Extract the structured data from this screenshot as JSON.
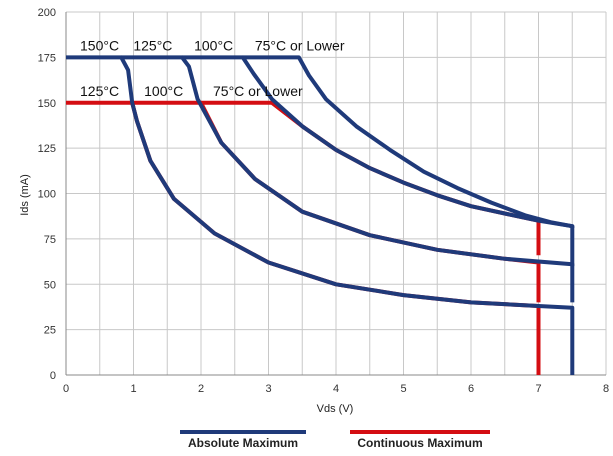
{
  "chart_data": {
    "type": "line",
    "xlabel": "Vds (V)",
    "ylabel": "Ids (mA)",
    "xlim": [
      0,
      8
    ],
    "ylim": [
      0,
      200
    ],
    "x_ticks": [
      "0",
      "1",
      "2",
      "3",
      "4",
      "5",
      "6",
      "7",
      "8"
    ],
    "y_ticks": [
      "0",
      "25",
      "50",
      "75",
      "100",
      "125",
      "150",
      "175",
      "200"
    ],
    "grid": true,
    "legend_placement": "bottom",
    "legend": [
      "Absolute Maximum",
      "Continuous Maximum"
    ],
    "colors": {
      "absolute": "#1f3a7a",
      "continuous": "#d40d12",
      "grid": "#c8c8c8",
      "axis": "#888888"
    },
    "series": [
      {
        "group": "absolute",
        "label": "150°C",
        "points": [
          [
            0,
            175
          ],
          [
            0.82,
            175
          ],
          [
            0.92,
            168
          ],
          [
            0.98,
            150
          ],
          [
            1.05,
            140
          ],
          [
            1.25,
            118
          ],
          [
            1.6,
            97
          ],
          [
            2.2,
            78
          ],
          [
            3.0,
            62
          ],
          [
            4.0,
            50
          ],
          [
            5.0,
            44
          ],
          [
            6.0,
            40
          ],
          [
            7.0,
            38
          ],
          [
            7.5,
            37
          ],
          [
            7.5,
            0
          ]
        ]
      },
      {
        "group": "absolute",
        "label": "125°C",
        "points": [
          [
            0.82,
            175
          ],
          [
            1.72,
            175
          ],
          [
            1.82,
            170
          ],
          [
            1.95,
            152
          ],
          [
            2.3,
            128
          ],
          [
            2.8,
            108
          ],
          [
            3.5,
            90
          ],
          [
            4.5,
            77
          ],
          [
            5.5,
            69
          ],
          [
            6.5,
            64
          ],
          [
            7.5,
            61
          ],
          [
            7.5,
            40
          ]
        ]
      },
      {
        "group": "absolute",
        "label": "100°C",
        "points": [
          [
            1.72,
            175
          ],
          [
            2.62,
            175
          ],
          [
            2.78,
            166
          ],
          [
            3.05,
            152
          ],
          [
            3.5,
            137
          ],
          [
            4.0,
            124
          ],
          [
            4.5,
            114
          ],
          [
            5.0,
            106
          ],
          [
            5.5,
            99
          ],
          [
            6.0,
            93
          ],
          [
            6.5,
            89
          ],
          [
            7.0,
            85
          ],
          [
            7.5,
            82
          ],
          [
            7.5,
            60
          ]
        ]
      },
      {
        "group": "absolute",
        "label": "75°C or Lower",
        "points": [
          [
            2.62,
            175
          ],
          [
            3.45,
            175
          ],
          [
            3.6,
            165
          ],
          [
            3.85,
            152
          ],
          [
            4.3,
            137
          ],
          [
            4.8,
            124
          ],
          [
            5.3,
            112
          ],
          [
            5.8,
            103
          ],
          [
            6.3,
            95
          ],
          [
            6.8,
            88
          ],
          [
            7.2,
            84
          ],
          [
            7.5,
            82
          ],
          [
            7.5,
            81
          ]
        ]
      },
      {
        "group": "continuous",
        "label": "125°C",
        "points": [
          [
            0,
            150
          ],
          [
            0.98,
            150
          ],
          [
            1.05,
            140
          ],
          [
            1.25,
            118
          ],
          [
            1.6,
            97
          ],
          [
            2.2,
            78
          ],
          [
            3.0,
            62
          ],
          [
            4.0,
            50
          ],
          [
            5.0,
            44
          ],
          [
            6.0,
            40
          ],
          [
            7.0,
            38
          ],
          [
            7.0,
            0
          ]
        ]
      },
      {
        "group": "continuous",
        "label": "100°C",
        "points": [
          [
            0.98,
            150
          ],
          [
            2.0,
            150
          ],
          [
            2.3,
            128
          ],
          [
            2.8,
            108
          ],
          [
            3.5,
            90
          ],
          [
            4.5,
            77
          ],
          [
            5.5,
            69
          ],
          [
            6.5,
            64
          ],
          [
            7.0,
            62
          ],
          [
            7.0,
            40
          ]
        ]
      },
      {
        "group": "continuous",
        "label": "75°C or Lower",
        "points": [
          [
            2.0,
            150
          ],
          [
            3.05,
            150
          ],
          [
            3.5,
            137
          ],
          [
            4.0,
            124
          ],
          [
            4.5,
            114
          ],
          [
            5.0,
            106
          ],
          [
            5.5,
            99
          ],
          [
            6.0,
            93
          ],
          [
            6.5,
            89
          ],
          [
            7.0,
            85
          ],
          [
            7.0,
            66
          ]
        ]
      }
    ]
  }
}
